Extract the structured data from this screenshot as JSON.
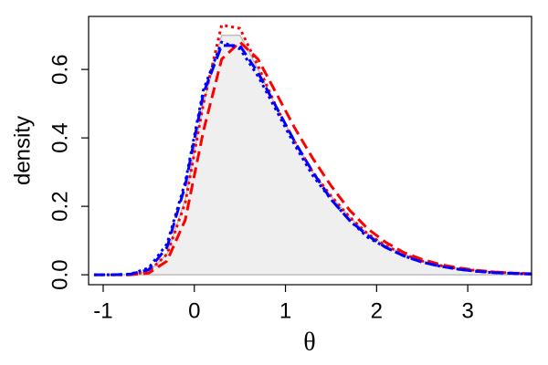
{
  "chart_data": {
    "type": "line",
    "x_label": "θ",
    "y_label": "density",
    "x": [
      -1.1,
      -0.9,
      -0.7,
      -0.5,
      -0.3,
      -0.1,
      0.1,
      0.3,
      0.5,
      0.7,
      0.9,
      1.1,
      1.3,
      1.5,
      1.7,
      1.9,
      2.1,
      2.3,
      2.5,
      2.7,
      2.9,
      3.1,
      3.3,
      3.5,
      3.7
    ],
    "series": [
      {
        "color": "#bdbdbd",
        "fill": "#efefef",
        "dash": "solid",
        "values": [
          0,
          0,
          0,
          0.01,
          0.06,
          0.22,
          0.5,
          0.7,
          0.7,
          0.6,
          0.49,
          0.39,
          0.3,
          0.23,
          0.17,
          0.12,
          0.085,
          0.06,
          0.04,
          0.027,
          0.018,
          0.012,
          0.008,
          0.005,
          0.003
        ]
      },
      {
        "color": "#ff0000",
        "dash": "dotted",
        "values": [
          0,
          0,
          0,
          0.01,
          0.06,
          0.21,
          0.5,
          0.73,
          0.72,
          0.61,
          0.49,
          0.39,
          0.3,
          0.23,
          0.17,
          0.12,
          0.085,
          0.06,
          0.04,
          0.027,
          0.018,
          0.012,
          0.008,
          0.005,
          0.003
        ]
      },
      {
        "color": "#ff0000",
        "dash": "dashed",
        "values": [
          0,
          0,
          0,
          0.005,
          0.04,
          0.16,
          0.42,
          0.63,
          0.68,
          0.63,
          0.53,
          0.43,
          0.34,
          0.26,
          0.19,
          0.135,
          0.095,
          0.065,
          0.045,
          0.03,
          0.02,
          0.013,
          0.008,
          0.005,
          0.003
        ]
      },
      {
        "color": "#0000ff",
        "dash": "dashed",
        "values": [
          0,
          0,
          0.002,
          0.015,
          0.08,
          0.26,
          0.53,
          0.67,
          0.67,
          0.59,
          0.49,
          0.39,
          0.3,
          0.22,
          0.16,
          0.115,
          0.08,
          0.055,
          0.037,
          0.025,
          0.016,
          0.01,
          0.006,
          0.004,
          0.002
        ]
      },
      {
        "color": "#0000ff",
        "dash": "dotted",
        "values": [
          0,
          0,
          0.002,
          0.02,
          0.09,
          0.27,
          0.54,
          0.68,
          0.66,
          0.58,
          0.48,
          0.38,
          0.29,
          0.22,
          0.16,
          0.11,
          0.08,
          0.055,
          0.037,
          0.025,
          0.016,
          0.01,
          0.006,
          0.004,
          0.002
        ]
      }
    ],
    "xlim": [
      -1.16,
      3.7
    ],
    "ylim": [
      -0.029,
      0.755
    ],
    "xticks": [
      -1,
      0,
      1,
      2,
      3
    ],
    "yticks": [
      {
        "value": 0,
        "label": "0.0"
      },
      {
        "value": 0.2,
        "label": "0.2"
      },
      {
        "value": 0.4,
        "label": "0.4"
      },
      {
        "value": 0.6,
        "label": "0.6"
      }
    ]
  }
}
